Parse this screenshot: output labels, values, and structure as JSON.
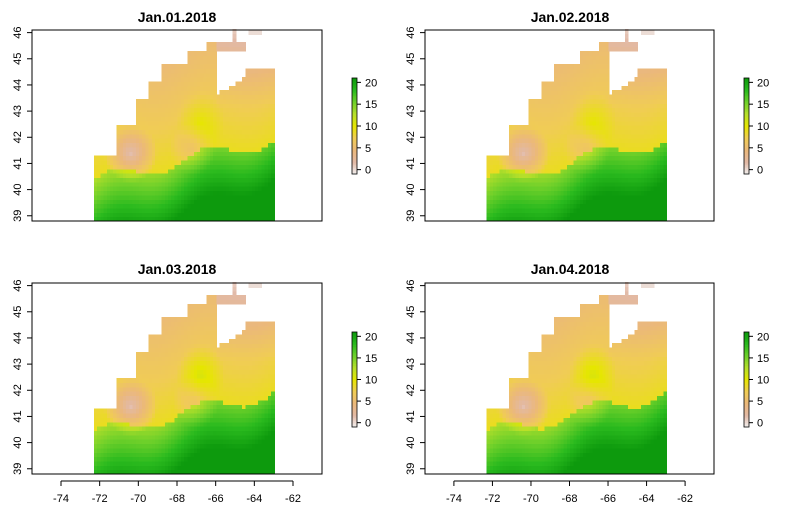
{
  "colors": {
    "scale": [
      "#f2f2f2",
      "#e2b9a6",
      "#ebb87a",
      "#f0cc55",
      "#e6e600",
      "#b6df2a",
      "#6fd02a",
      "#2aba1e",
      "#0d9a0d"
    ],
    "frame": "#000000",
    "background": "#ffffff"
  },
  "chart_data": [
    {
      "type": "heatmap",
      "title": "Jan.01.2018",
      "xlabel": "",
      "ylabel": "",
      "xlim": [
        -75.5,
        -60.5
      ],
      "ylim": [
        38.8,
        46.1
      ],
      "x_ticks": [
        "-74",
        "-72",
        "-70",
        "-68",
        "-66",
        "-64",
        "-62"
      ],
      "y_ticks": [
        "39",
        "40",
        "41",
        "42",
        "43",
        "44",
        "45",
        "46"
      ],
      "x_ticks_shown": false,
      "legend": {
        "position": "right",
        "ticks": [
          "0",
          "5",
          "10",
          "15",
          "20"
        ],
        "range": [
          -1,
          21
        ]
      },
      "grid": false,
      "field_id": 0
    },
    {
      "type": "heatmap",
      "title": "Jan.02.2018",
      "xlabel": "",
      "ylabel": "",
      "xlim": [
        -75.5,
        -60.5
      ],
      "ylim": [
        38.8,
        46.1
      ],
      "x_ticks": [
        "-74",
        "-72",
        "-70",
        "-68",
        "-66",
        "-64",
        "-62"
      ],
      "y_ticks": [
        "39",
        "40",
        "41",
        "42",
        "43",
        "44",
        "45",
        "46"
      ],
      "x_ticks_shown": false,
      "legend": {
        "position": "right",
        "ticks": [
          "0",
          "5",
          "10",
          "15",
          "20"
        ],
        "range": [
          -1,
          21
        ]
      },
      "grid": false,
      "field_id": 1
    },
    {
      "type": "heatmap",
      "title": "Jan.03.2018",
      "xlabel": "",
      "ylabel": "",
      "xlim": [
        -75.5,
        -60.5
      ],
      "ylim": [
        38.8,
        46.1
      ],
      "x_ticks": [
        "-74",
        "-72",
        "-70",
        "-68",
        "-66",
        "-64",
        "-62"
      ],
      "y_ticks": [
        "39",
        "40",
        "41",
        "42",
        "43",
        "44",
        "45",
        "46"
      ],
      "x_ticks_shown": true,
      "legend": {
        "position": "right",
        "ticks": [
          "0",
          "5",
          "10",
          "15",
          "20"
        ],
        "range": [
          -1,
          21
        ]
      },
      "grid": false,
      "field_id": 2
    },
    {
      "type": "heatmap",
      "title": "Jan.04.2018",
      "xlabel": "",
      "ylabel": "",
      "xlim": [
        -75.5,
        -60.5
      ],
      "ylim": [
        38.8,
        46.1
      ],
      "x_ticks": [
        "-74",
        "-72",
        "-70",
        "-68",
        "-66",
        "-64",
        "-62"
      ],
      "y_ticks": [
        "39",
        "40",
        "41",
        "42",
        "43",
        "44",
        "45",
        "46"
      ],
      "x_ticks_shown": true,
      "legend": {
        "position": "right",
        "ticks": [
          "0",
          "5",
          "10",
          "15",
          "20"
        ],
        "range": [
          -1,
          21
        ]
      },
      "grid": false,
      "field_id": 3
    }
  ]
}
